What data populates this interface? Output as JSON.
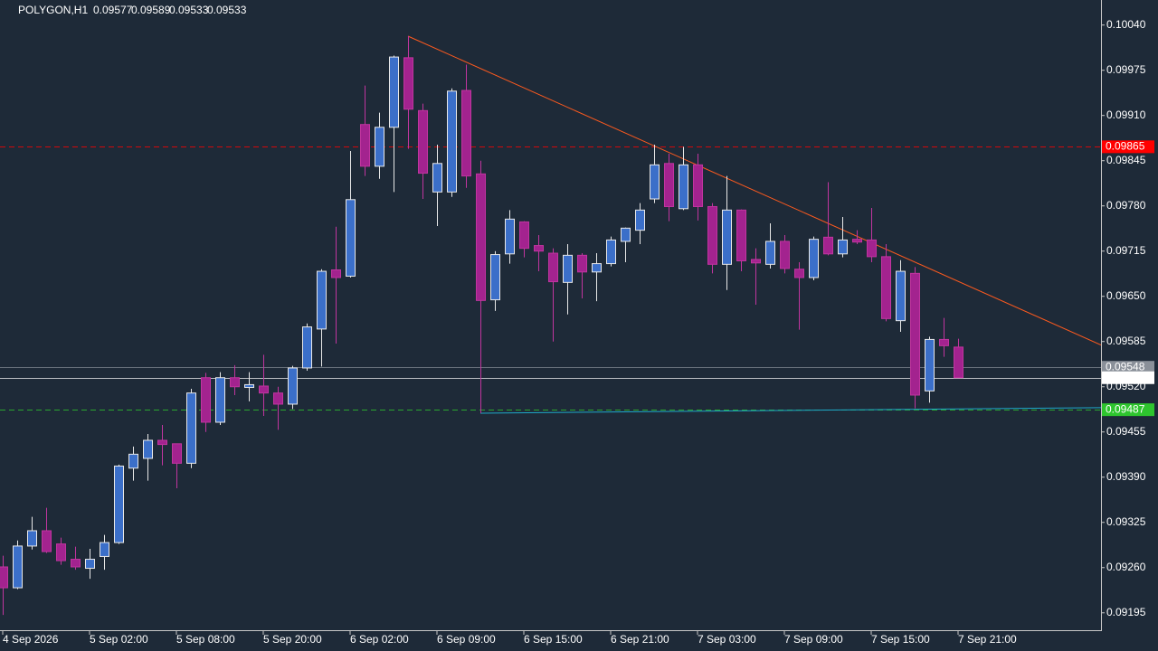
{
  "chart_data": {
    "type": "candlestick",
    "title": "POLYGON,H1",
    "categories": [
      "4 Sep 2026",
      null,
      null,
      null,
      null,
      null,
      "5 Sep 02:00",
      null,
      null,
      null,
      null,
      null,
      "5 Sep 08:00",
      null,
      null,
      null,
      null,
      null,
      "5 Sep 20:00",
      null,
      null,
      null,
      null,
      null,
      "6 Sep 02:00",
      null,
      null,
      null,
      null,
      null,
      "6 Sep 09:00",
      null,
      null,
      null,
      null,
      null,
      "6 Sep 15:00",
      null,
      null,
      null,
      null,
      null,
      "6 Sep 21:00",
      null,
      null,
      null,
      null,
      null,
      "7 Sep 03:00",
      null,
      null,
      null,
      null,
      null,
      "7 Sep 09:00",
      null,
      null,
      null,
      null,
      null,
      "7 Sep 15:00",
      null,
      null,
      null,
      null,
      null,
      "7 Sep 21:00"
    ],
    "open": [
      0.09261,
      0.09231,
      0.09291,
      0.09313,
      0.09294,
      0.09272,
      0.09259,
      0.09276,
      0.09296,
      0.09403,
      0.09417,
      0.09443,
      0.09438,
      0.0941,
      0.09533,
      0.09469,
      0.09533,
      0.09519,
      0.09521,
      0.09511,
      0.09495,
      0.09547,
      0.09603,
      0.09688,
      0.09679,
      0.09897,
      0.09837,
      0.09893,
      0.09993,
      0.09917,
      0.098,
      0.098,
      0.09946,
      0.09826,
      0.09645,
      0.09711,
      0.09757,
      0.09723,
      0.09712,
      0.0967,
      0.09709,
      0.09685,
      0.09697,
      0.09729,
      0.09745,
      0.0979,
      0.09841,
      0.09776,
      0.09839,
      0.09779,
      0.09696,
      0.09774,
      0.09703,
      0.09696,
      0.09729,
      0.09689,
      0.09677,
      0.09735,
      0.09711,
      0.09732,
      0.09731,
      0.09707,
      0.09615,
      0.09683,
      0.09514,
      0.09588,
      0.09577
    ],
    "high": [
      0.09277,
      0.09299,
      0.09333,
      0.09346,
      0.09303,
      0.0929,
      0.09287,
      0.09307,
      0.09408,
      0.09434,
      0.09452,
      0.09465,
      0.09438,
      0.09517,
      0.0954,
      0.09541,
      0.09551,
      0.09541,
      0.09566,
      0.0952,
      0.0955,
      0.09611,
      0.09689,
      0.0975,
      0.09859,
      0.09953,
      0.09914,
      0.09996,
      0.10024,
      0.09927,
      0.09868,
      0.09949,
      0.09983,
      0.09845,
      0.09715,
      0.09774,
      0.09758,
      0.09738,
      0.09719,
      0.09725,
      0.09712,
      0.09712,
      0.09736,
      0.09749,
      0.09784,
      0.09868,
      0.09855,
      0.09865,
      0.09855,
      0.09784,
      0.09823,
      0.09775,
      0.09719,
      0.09755,
      0.09738,
      0.09699,
      0.09736,
      0.09814,
      0.09764,
      0.09745,
      0.09777,
      0.09725,
      0.09702,
      0.09692,
      0.09592,
      0.09619,
      0.09589
    ],
    "low": [
      0.09192,
      0.09229,
      0.09286,
      0.09281,
      0.09264,
      0.09257,
      0.09244,
      0.09257,
      0.09294,
      0.09385,
      0.09385,
      0.09407,
      0.09374,
      0.09403,
      0.09455,
      0.09465,
      0.09508,
      0.09499,
      0.09478,
      0.09458,
      0.09488,
      0.09543,
      0.09549,
      0.09582,
      0.09677,
      0.09823,
      0.09819,
      0.098,
      0.09862,
      0.0979,
      0.09751,
      0.09793,
      0.09806,
      0.09482,
      0.09629,
      0.09697,
      0.09706,
      0.09686,
      0.09585,
      0.09624,
      0.09647,
      0.09643,
      0.09693,
      0.09699,
      0.09725,
      0.09784,
      0.09758,
      0.09774,
      0.09759,
      0.09683,
      0.09659,
      0.09686,
      0.09638,
      0.0969,
      0.09683,
      0.09602,
      0.09673,
      0.09709,
      0.09706,
      0.09725,
      0.09699,
      0.09614,
      0.09599,
      0.09489,
      0.09497,
      0.09563,
      0.09533
    ],
    "close": [
      0.09231,
      0.09291,
      0.09313,
      0.09283,
      0.0927,
      0.09261,
      0.09272,
      0.09296,
      0.09406,
      0.09423,
      0.09443,
      0.09437,
      0.0941,
      0.09511,
      0.09469,
      0.09533,
      0.0952,
      0.09523,
      0.09511,
      0.09495,
      0.09547,
      0.09606,
      0.09686,
      0.09677,
      0.09789,
      0.09837,
      0.09893,
      0.09994,
      0.09919,
      0.09827,
      0.09841,
      0.09945,
      0.09823,
      0.09644,
      0.0971,
      0.09761,
      0.09719,
      0.09715,
      0.09671,
      0.09709,
      0.09685,
      0.09697,
      0.09731,
      0.09748,
      0.09774,
      0.09839,
      0.09779,
      0.09839,
      0.09779,
      0.09696,
      0.09774,
      0.09701,
      0.09698,
      0.09729,
      0.0969,
      0.09677,
      0.09732,
      0.09711,
      0.09731,
      0.09728,
      0.09707,
      0.09618,
      0.09686,
      0.09508,
      0.09588,
      0.09579,
      0.09533
    ],
    "up_color": "#3b6fc9",
    "down_color": "#a3238f",
    "ylim": [
      0.0917,
      0.10076
    ],
    "yticks": [
      {
        "value": 0.1004,
        "label": "0.10040"
      },
      0.09975,
      {
        "value": 0.0991,
        "label": "0.09910"
      },
      0.09845,
      {
        "value": 0.0978,
        "label": "0.09780"
      },
      0.09715,
      {
        "value": 0.0965,
        "label": "0.09650"
      },
      0.09585,
      {
        "value": 0.0952,
        "label": "0.09520"
      },
      0.09455,
      {
        "value": 0.0939,
        "label": "0.09390"
      },
      0.09325,
      {
        "value": 0.0926,
        "label": "0.09260"
      },
      0.09195
    ],
    "levels": [
      {
        "value": 0.09865,
        "color": "#ff0000",
        "style": "dashed"
      },
      {
        "value": 0.09548,
        "color": "#8a9099",
        "style": "solid"
      },
      {
        "value": 0.09533,
        "color": "#ffffff",
        "style": "solid"
      },
      {
        "value": 0.09487,
        "color": "#2ec52e",
        "style": "dashed"
      }
    ],
    "lines": [
      {
        "x": [
          28,
          76
        ],
        "y": [
          0.10024,
          0.0958
        ],
        "color": "#ff5a1e"
      },
      {
        "x": [
          33,
          76
        ],
        "y": [
          0.09482,
          0.0949
        ],
        "color": "#1fa9c9"
      }
    ]
  }
}
